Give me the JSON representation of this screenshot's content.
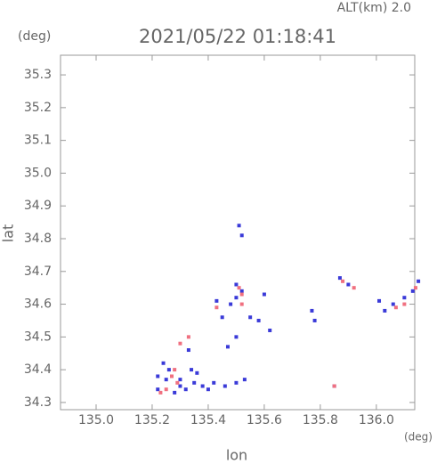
{
  "chart_data": {
    "type": "scatter",
    "altitude_label": "ALT(km) 2.0",
    "title": "2021/05/22 01:18:41",
    "y_unit": "(deg)",
    "x_unit": "(deg)",
    "xlabel": "lon",
    "ylabel": "lat",
    "xlim": [
      134.873,
      136.137
    ],
    "ylim": [
      34.278,
      35.36
    ],
    "xticks": [
      {
        "value": 135,
        "label": "135.0"
      },
      135.2,
      135.4,
      135.6,
      135.8,
      {
        "value": 136,
        "label": "136.0"
      }
    ],
    "yticks": [
      34.3,
      34.4,
      34.5,
      34.6,
      34.7,
      34.8,
      34.9,
      {
        "value": 35,
        "label": "35.0"
      },
      35.1,
      35.2,
      35.3
    ],
    "series": [
      {
        "color": "#3a3ad8",
        "x": [
          135.51,
          135.52,
          135.5,
          135.52,
          135.5,
          135.48,
          135.6,
          135.58,
          135.45,
          135.43,
          135.55,
          135.62,
          135.5,
          135.47,
          135.33,
          135.24,
          135.22,
          135.25,
          135.3,
          135.28,
          135.32,
          135.35,
          135.38,
          135.4,
          135.42,
          135.46,
          135.5,
          135.53,
          135.22,
          135.77,
          135.78,
          135.85,
          135.87,
          135.9,
          136.01,
          136.03,
          136.06,
          136.1,
          136.13,
          136.15,
          135.26,
          135.34,
          135.36,
          135.3
        ],
        "values": [
          34.84,
          34.81,
          34.66,
          34.64,
          34.62,
          34.6,
          34.63,
          34.55,
          34.56,
          34.61,
          34.56,
          34.52,
          34.5,
          34.47,
          34.46,
          34.42,
          34.38,
          34.37,
          34.35,
          34.33,
          34.34,
          34.36,
          34.35,
          34.34,
          34.36,
          34.35,
          34.36,
          34.37,
          34.34,
          34.58,
          34.55,
          34.35,
          34.68,
          34.66,
          34.61,
          34.58,
          34.6,
          34.62,
          34.64,
          34.67,
          34.4,
          34.4,
          34.39,
          34.37
        ]
      },
      {
        "color": "#f07080",
        "x": [
          135.51,
          135.52,
          135.43,
          135.3,
          135.33,
          135.28,
          135.27,
          135.25,
          135.23,
          135.29,
          135.88,
          135.92,
          136.07,
          136.1,
          136.14,
          135.85,
          135.52
        ],
        "values": [
          34.65,
          34.63,
          34.59,
          34.48,
          34.5,
          34.4,
          34.38,
          34.34,
          34.33,
          34.36,
          34.67,
          34.65,
          34.59,
          34.6,
          34.65,
          34.35,
          34.6
        ]
      }
    ]
  }
}
